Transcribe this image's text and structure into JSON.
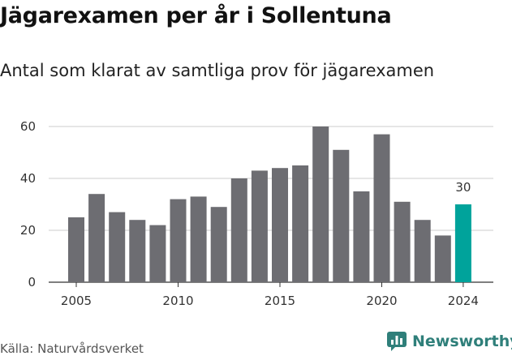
{
  "header": {
    "title": "Jägarexamen per år i Sollentuna",
    "subtitle": "Antal som klarat av samtliga prov för jägarexamen"
  },
  "footer": {
    "source": "Källa: Naturvårdsverket",
    "brand": "Newsworthy"
  },
  "colors": {
    "bar": "#6d6d72",
    "highlight": "#00a39b",
    "brand": "#2f7f7a",
    "grid": "#cccccc"
  },
  "chart_data": {
    "type": "bar",
    "title": "Jägarexamen per år i Sollentuna",
    "subtitle": "Antal som klarat av samtliga prov för jägarexamen",
    "xlabel": "",
    "ylabel": "",
    "categories": [
      2005,
      2006,
      2007,
      2008,
      2009,
      2010,
      2011,
      2012,
      2013,
      2014,
      2015,
      2016,
      2017,
      2018,
      2019,
      2020,
      2021,
      2022,
      2023,
      2024
    ],
    "values": [
      25,
      34,
      27,
      24,
      22,
      32,
      33,
      29,
      40,
      43,
      44,
      45,
      60,
      51,
      35,
      57,
      31,
      24,
      18,
      30
    ],
    "ylim": [
      0,
      60
    ],
    "yticks": [
      0,
      20,
      40,
      60
    ],
    "xticks": [
      2005,
      2010,
      2015,
      2020,
      2024
    ],
    "highlight_category": 2024,
    "data_labels": [
      {
        "category": 2024,
        "text": "30"
      }
    ],
    "grid": "horizontal"
  }
}
